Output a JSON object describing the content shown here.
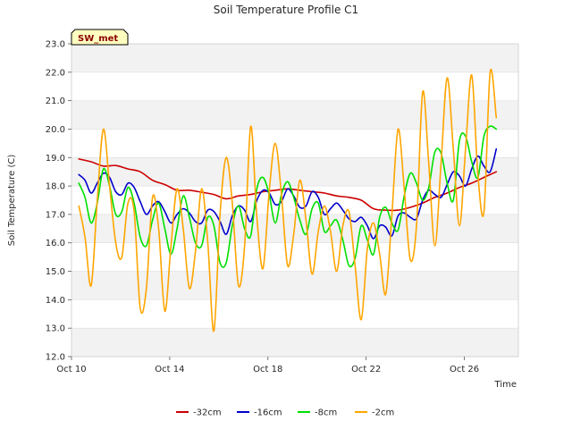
{
  "chart_data": {
    "type": "line",
    "title": "Soil Temperature Profile C1",
    "xlabel": "Time",
    "ylabel": "Soil Temperature (C)",
    "badge": "SW_met",
    "ylim": [
      12.0,
      23.0
    ],
    "yticks": [
      "12.0",
      "13.0",
      "14.0",
      "15.0",
      "16.0",
      "17.0",
      "18.0",
      "19.0",
      "20.0",
      "21.0",
      "22.0",
      "23.0"
    ],
    "xlim_days": [
      10,
      28.2
    ],
    "xticks": [
      {
        "day": 10,
        "label": "Oct 10"
      },
      {
        "day": 14,
        "label": "Oct 14"
      },
      {
        "day": 18,
        "label": "Oct 18"
      },
      {
        "day": 22,
        "label": "Oct 22"
      },
      {
        "day": 26,
        "label": "Oct 26"
      }
    ],
    "grid": "horizontal bands",
    "legend_position": "bottom",
    "series": [
      {
        "name": "-32cm",
        "color": "#cc0000",
        "x": [
          10.3,
          10.8,
          11.3,
          11.8,
          12.3,
          12.8,
          13.3,
          13.8,
          14.3,
          14.8,
          15.3,
          15.8,
          16.3,
          16.8,
          17.3,
          17.8,
          18.3,
          18.8,
          19.3,
          19.8,
          20.3,
          20.8,
          21.3,
          21.8,
          22.3,
          22.8,
          23.3,
          23.8,
          24.3,
          24.8,
          25.3,
          25.8,
          26.3,
          26.8,
          27.3
        ],
        "y": [
          18.95,
          18.85,
          18.7,
          18.72,
          18.6,
          18.5,
          18.2,
          18.05,
          17.85,
          17.85,
          17.78,
          17.7,
          17.55,
          17.65,
          17.7,
          17.8,
          17.85,
          17.9,
          17.85,
          17.8,
          17.75,
          17.65,
          17.6,
          17.5,
          17.2,
          17.15,
          17.15,
          17.25,
          17.4,
          17.6,
          17.75,
          17.95,
          18.1,
          18.3,
          18.5
        ]
      },
      {
        "name": "-16cm",
        "color": "#0000cc",
        "x": [
          10.3,
          10.55,
          10.8,
          11.05,
          11.3,
          11.55,
          11.8,
          12.05,
          12.3,
          12.55,
          12.8,
          13.05,
          13.3,
          13.55,
          13.8,
          14.05,
          14.3,
          14.55,
          14.8,
          15.05,
          15.3,
          15.55,
          15.8,
          16.05,
          16.3,
          16.55,
          16.8,
          17.05,
          17.3,
          17.55,
          17.8,
          18.05,
          18.3,
          18.55,
          18.8,
          19.05,
          19.3,
          19.55,
          19.8,
          20.05,
          20.3,
          20.55,
          20.8,
          21.05,
          21.3,
          21.55,
          21.8,
          22.05,
          22.3,
          22.55,
          22.8,
          23.05,
          23.3,
          23.55,
          23.8,
          24.05,
          24.3,
          24.55,
          24.8,
          25.05,
          25.3,
          25.55,
          25.8,
          26.05,
          26.3,
          26.55,
          26.8,
          27.05,
          27.3
        ],
        "y": [
          18.4,
          18.2,
          17.75,
          18.1,
          18.45,
          18.3,
          17.8,
          17.7,
          18.1,
          17.95,
          17.45,
          17.0,
          17.3,
          17.45,
          17.1,
          16.7,
          17.0,
          17.2,
          17.05,
          16.75,
          16.7,
          17.15,
          17.1,
          16.75,
          16.3,
          16.95,
          17.3,
          17.15,
          16.75,
          17.5,
          17.85,
          17.75,
          17.35,
          17.45,
          17.9,
          17.65,
          17.25,
          17.3,
          17.8,
          17.6,
          17.0,
          17.2,
          17.4,
          17.15,
          16.85,
          16.75,
          16.9,
          16.6,
          16.15,
          16.6,
          16.55,
          16.25,
          16.95,
          17.05,
          16.9,
          16.85,
          17.5,
          17.85,
          17.7,
          17.6,
          18.05,
          18.5,
          18.35,
          18.0,
          18.6,
          19.05,
          18.7,
          18.5,
          19.3
        ]
      },
      {
        "name": "-8cm",
        "color": "#00e000",
        "x": [
          10.3,
          10.55,
          10.8,
          11.05,
          11.3,
          11.55,
          11.8,
          12.05,
          12.3,
          12.55,
          12.8,
          13.05,
          13.3,
          13.55,
          13.8,
          14.05,
          14.3,
          14.55,
          14.8,
          15.05,
          15.3,
          15.55,
          15.8,
          16.05,
          16.3,
          16.55,
          16.8,
          17.05,
          17.3,
          17.55,
          17.8,
          18.05,
          18.3,
          18.55,
          18.8,
          19.05,
          19.3,
          19.55,
          19.8,
          20.05,
          20.3,
          20.55,
          20.8,
          21.05,
          21.3,
          21.55,
          21.8,
          22.05,
          22.3,
          22.55,
          22.8,
          23.05,
          23.3,
          23.55,
          23.8,
          24.05,
          24.3,
          24.55,
          24.8,
          25.05,
          25.3,
          25.55,
          25.8,
          26.05,
          26.3,
          26.55,
          26.8,
          27.05,
          27.3
        ],
        "y": [
          18.1,
          17.6,
          16.7,
          17.4,
          18.6,
          18.0,
          17.0,
          17.1,
          17.95,
          17.4,
          16.2,
          15.9,
          16.8,
          17.4,
          16.5,
          15.6,
          16.5,
          17.65,
          16.9,
          16.0,
          15.9,
          16.9,
          16.6,
          15.3,
          15.3,
          16.6,
          17.3,
          16.5,
          16.25,
          17.9,
          18.3,
          17.7,
          16.7,
          17.7,
          18.15,
          17.6,
          16.8,
          16.3,
          17.2,
          17.4,
          16.4,
          16.6,
          16.8,
          16.1,
          15.2,
          15.45,
          16.6,
          16.1,
          15.6,
          16.9,
          17.25,
          16.7,
          16.45,
          17.65,
          18.45,
          18.1,
          17.5,
          17.95,
          19.2,
          19.15,
          18.1,
          17.5,
          19.6,
          19.75,
          18.85,
          18.3,
          19.75,
          20.1,
          20.0
        ]
      },
      {
        "name": "-2cm",
        "color": "#ffa500",
        "x": [
          10.3,
          10.55,
          10.8,
          11.05,
          11.3,
          11.55,
          11.8,
          12.05,
          12.3,
          12.55,
          12.8,
          13.05,
          13.3,
          13.55,
          13.8,
          14.05,
          14.3,
          14.55,
          14.8,
          15.05,
          15.3,
          15.55,
          15.8,
          16.05,
          16.3,
          16.55,
          16.8,
          17.05,
          17.3,
          17.55,
          17.8,
          18.05,
          18.3,
          18.55,
          18.8,
          19.05,
          19.3,
          19.55,
          19.8,
          20.05,
          20.3,
          20.55,
          20.8,
          21.05,
          21.3,
          21.55,
          21.8,
          22.05,
          22.3,
          22.55,
          22.8,
          23.05,
          23.3,
          23.55,
          23.8,
          24.05,
          24.3,
          24.55,
          24.8,
          25.05,
          25.3,
          25.55,
          25.8,
          26.05,
          26.3,
          26.55,
          26.8,
          27.05,
          27.3
        ],
        "y": [
          17.3,
          16.2,
          14.5,
          17.5,
          20.0,
          18.0,
          16.0,
          15.5,
          17.4,
          17.1,
          13.7,
          14.4,
          17.6,
          16.5,
          13.6,
          15.9,
          17.9,
          16.5,
          14.4,
          15.7,
          17.9,
          16.0,
          12.9,
          17.0,
          19.0,
          17.4,
          14.5,
          15.9,
          20.1,
          16.9,
          15.1,
          17.8,
          19.5,
          17.7,
          15.2,
          16.3,
          18.2,
          16.8,
          14.9,
          16.4,
          17.3,
          16.4,
          15.0,
          16.6,
          17.1,
          15.2,
          13.3,
          15.8,
          16.7,
          15.6,
          14.2,
          17.0,
          20.0,
          17.9,
          15.4,
          16.6,
          21.3,
          18.8,
          15.9,
          18.8,
          21.8,
          19.3,
          16.6,
          19.3,
          21.9,
          18.4,
          17.1,
          22.0,
          20.4
        ]
      }
    ]
  }
}
